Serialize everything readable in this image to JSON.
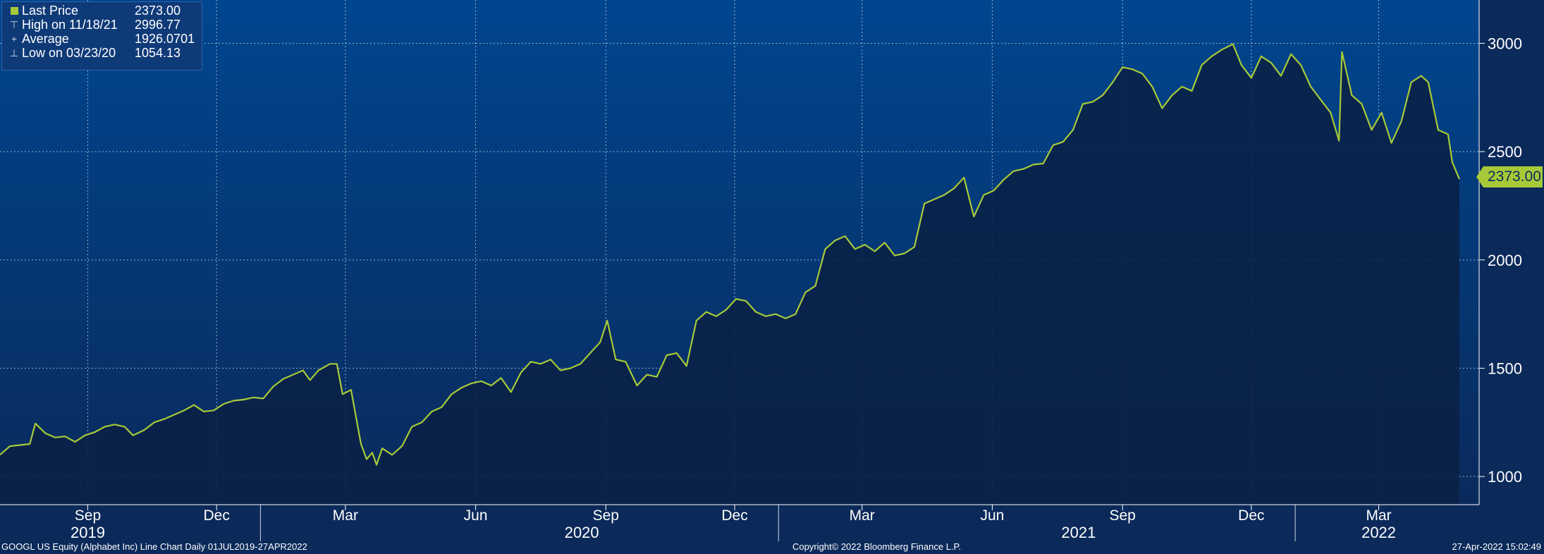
{
  "legend": {
    "items": [
      {
        "label": "Last Price",
        "value": "2373.00",
        "icon": "square-icon"
      },
      {
        "label": "High on 11/18/21",
        "value": "2996.77",
        "icon": "high-marker-icon"
      },
      {
        "label": "Average",
        "value": "1926.0701",
        "icon": "average-marker-icon"
      },
      {
        "label": "Low on 03/23/20",
        "value": "1054.13",
        "icon": "low-marker-icon"
      }
    ]
  },
  "last_price_tag": "2373.00",
  "footer": {
    "left": "GOOGL US Equity (Alphabet Inc) Line Chart  Daily 01JUL2019-27APR2022",
    "center": "Copyright© 2022 Bloomberg Finance L.P.",
    "right": "27-Apr-2022 15:02:49"
  },
  "colors": {
    "background_top": "#00468f",
    "background_bottom": "#0a2a5c",
    "fill": "#0a2146",
    "line": "#a7c939",
    "grid": "#c9d3e3",
    "text": "#ffffff"
  },
  "chart_data": {
    "type": "area",
    "title": "",
    "xlabel": "",
    "ylabel": "",
    "x_range": [
      "2019-07-01",
      "2022-04-27"
    ],
    "ylim": [
      870,
      3200
    ],
    "y_ticks": [
      1000,
      1500,
      2000,
      2500,
      3000
    ],
    "y_axis_position": "right",
    "grid": true,
    "legend_position": "top-left",
    "month_ticks": [
      {
        "date": "2019-09-01",
        "label": "Sep"
      },
      {
        "date": "2019-12-01",
        "label": "Dec"
      },
      {
        "date": "2020-03-01",
        "label": "Mar"
      },
      {
        "date": "2020-06-01",
        "label": "Jun"
      },
      {
        "date": "2020-09-01",
        "label": "Sep"
      },
      {
        "date": "2020-12-01",
        "label": "Dec"
      },
      {
        "date": "2021-03-01",
        "label": "Mar"
      },
      {
        "date": "2021-06-01",
        "label": "Jun"
      },
      {
        "date": "2021-09-01",
        "label": "Sep"
      },
      {
        "date": "2021-12-01",
        "label": "Dec"
      },
      {
        "date": "2022-03-01",
        "label": "Mar"
      }
    ],
    "year_labels": [
      {
        "date": "2019-09-01",
        "label": "2019"
      },
      {
        "date": "2020-08-15",
        "label": "2020"
      },
      {
        "date": "2021-08-01",
        "label": "2021"
      },
      {
        "date": "2022-03-01",
        "label": "2022"
      }
    ],
    "year_boundaries": [
      "2020-01-01",
      "2021-01-01",
      "2022-01-01"
    ],
    "series": [
      {
        "name": "Last Price",
        "points": [
          [
            "2019-07-01",
            1100
          ],
          [
            "2019-07-08",
            1140
          ],
          [
            "2019-07-15",
            1145
          ],
          [
            "2019-07-22",
            1150
          ],
          [
            "2019-07-26",
            1245
          ],
          [
            "2019-08-02",
            1200
          ],
          [
            "2019-08-09",
            1180
          ],
          [
            "2019-08-16",
            1185
          ],
          [
            "2019-08-23",
            1160
          ],
          [
            "2019-08-30",
            1190
          ],
          [
            "2019-09-06",
            1205
          ],
          [
            "2019-09-13",
            1230
          ],
          [
            "2019-09-20",
            1240
          ],
          [
            "2019-09-27",
            1230
          ],
          [
            "2019-10-03",
            1190
          ],
          [
            "2019-10-11",
            1215
          ],
          [
            "2019-10-18",
            1250
          ],
          [
            "2019-10-25",
            1265
          ],
          [
            "2019-11-01",
            1285
          ],
          [
            "2019-11-08",
            1305
          ],
          [
            "2019-11-15",
            1330
          ],
          [
            "2019-11-22",
            1300
          ],
          [
            "2019-11-29",
            1305
          ],
          [
            "2019-12-06",
            1335
          ],
          [
            "2019-12-13",
            1350
          ],
          [
            "2019-12-20",
            1355
          ],
          [
            "2019-12-27",
            1365
          ],
          [
            "2020-01-03",
            1360
          ],
          [
            "2020-01-10",
            1415
          ],
          [
            "2020-01-17",
            1450
          ],
          [
            "2020-01-24",
            1470
          ],
          [
            "2020-01-31",
            1490
          ],
          [
            "2020-02-05",
            1445
          ],
          [
            "2020-02-11",
            1490
          ],
          [
            "2020-02-19",
            1520
          ],
          [
            "2020-02-24",
            1520
          ],
          [
            "2020-02-28",
            1380
          ],
          [
            "2020-03-05",
            1400
          ],
          [
            "2020-03-12",
            1150
          ],
          [
            "2020-03-16",
            1080
          ],
          [
            "2020-03-20",
            1110
          ],
          [
            "2020-03-23",
            1054
          ],
          [
            "2020-03-27",
            1130
          ],
          [
            "2020-04-03",
            1100
          ],
          [
            "2020-04-10",
            1140
          ],
          [
            "2020-04-17",
            1230
          ],
          [
            "2020-04-24",
            1250
          ],
          [
            "2020-05-01",
            1300
          ],
          [
            "2020-05-08",
            1320
          ],
          [
            "2020-05-15",
            1380
          ],
          [
            "2020-05-22",
            1410
          ],
          [
            "2020-05-29",
            1430
          ],
          [
            "2020-06-05",
            1440
          ],
          [
            "2020-06-12",
            1420
          ],
          [
            "2020-06-19",
            1455
          ],
          [
            "2020-06-26",
            1390
          ],
          [
            "2020-07-03",
            1480
          ],
          [
            "2020-07-10",
            1530
          ],
          [
            "2020-07-17",
            1520
          ],
          [
            "2020-07-24",
            1540
          ],
          [
            "2020-07-31",
            1490
          ],
          [
            "2020-08-07",
            1500
          ],
          [
            "2020-08-14",
            1520
          ],
          [
            "2020-08-21",
            1570
          ],
          [
            "2020-08-28",
            1620
          ],
          [
            "2020-09-02",
            1720
          ],
          [
            "2020-09-08",
            1540
          ],
          [
            "2020-09-15",
            1530
          ],
          [
            "2020-09-23",
            1420
          ],
          [
            "2020-09-30",
            1470
          ],
          [
            "2020-10-07",
            1460
          ],
          [
            "2020-10-14",
            1560
          ],
          [
            "2020-10-21",
            1570
          ],
          [
            "2020-10-28",
            1510
          ],
          [
            "2020-11-04",
            1720
          ],
          [
            "2020-11-11",
            1760
          ],
          [
            "2020-11-18",
            1740
          ],
          [
            "2020-11-25",
            1770
          ],
          [
            "2020-12-02",
            1820
          ],
          [
            "2020-12-09",
            1810
          ],
          [
            "2020-12-16",
            1760
          ],
          [
            "2020-12-23",
            1740
          ],
          [
            "2020-12-30",
            1750
          ],
          [
            "2021-01-06",
            1730
          ],
          [
            "2021-01-13",
            1750
          ],
          [
            "2021-01-20",
            1850
          ],
          [
            "2021-01-27",
            1880
          ],
          [
            "2021-02-03",
            2050
          ],
          [
            "2021-02-10",
            2090
          ],
          [
            "2021-02-17",
            2110
          ],
          [
            "2021-02-24",
            2050
          ],
          [
            "2021-03-03",
            2070
          ],
          [
            "2021-03-10",
            2040
          ],
          [
            "2021-03-17",
            2080
          ],
          [
            "2021-03-24",
            2020
          ],
          [
            "2021-03-31",
            2030
          ],
          [
            "2021-04-07",
            2060
          ],
          [
            "2021-04-14",
            2260
          ],
          [
            "2021-04-21",
            2280
          ],
          [
            "2021-04-28",
            2300
          ],
          [
            "2021-05-05",
            2330
          ],
          [
            "2021-05-12",
            2380
          ],
          [
            "2021-05-19",
            2200
          ],
          [
            "2021-05-26",
            2300
          ],
          [
            "2021-06-02",
            2320
          ],
          [
            "2021-06-09",
            2370
          ],
          [
            "2021-06-16",
            2410
          ],
          [
            "2021-06-23",
            2420
          ],
          [
            "2021-06-30",
            2440
          ],
          [
            "2021-07-07",
            2445
          ],
          [
            "2021-07-14",
            2530
          ],
          [
            "2021-07-21",
            2545
          ],
          [
            "2021-07-28",
            2600
          ],
          [
            "2021-08-04",
            2720
          ],
          [
            "2021-08-11",
            2730
          ],
          [
            "2021-08-18",
            2760
          ],
          [
            "2021-08-25",
            2820
          ],
          [
            "2021-09-01",
            2890
          ],
          [
            "2021-09-08",
            2880
          ],
          [
            "2021-09-15",
            2860
          ],
          [
            "2021-09-22",
            2800
          ],
          [
            "2021-09-29",
            2700
          ],
          [
            "2021-10-06",
            2760
          ],
          [
            "2021-10-13",
            2800
          ],
          [
            "2021-10-20",
            2780
          ],
          [
            "2021-10-27",
            2900
          ],
          [
            "2021-11-03",
            2940
          ],
          [
            "2021-11-10",
            2970
          ],
          [
            "2021-11-18",
            2996.77
          ],
          [
            "2021-11-24",
            2900
          ],
          [
            "2021-12-01",
            2840
          ],
          [
            "2021-12-08",
            2940
          ],
          [
            "2021-12-15",
            2910
          ],
          [
            "2021-12-22",
            2850
          ],
          [
            "2021-12-29",
            2950
          ],
          [
            "2022-01-05",
            2900
          ],
          [
            "2022-01-12",
            2800
          ],
          [
            "2022-01-19",
            2740
          ],
          [
            "2022-01-26",
            2680
          ],
          [
            "2022-02-01",
            2550
          ],
          [
            "2022-02-03",
            2960
          ],
          [
            "2022-02-10",
            2760
          ],
          [
            "2022-02-17",
            2720
          ],
          [
            "2022-02-24",
            2600
          ],
          [
            "2022-03-03",
            2680
          ],
          [
            "2022-03-10",
            2540
          ],
          [
            "2022-03-17",
            2640
          ],
          [
            "2022-03-24",
            2820
          ],
          [
            "2022-03-31",
            2850
          ],
          [
            "2022-04-05",
            2820
          ],
          [
            "2022-04-12",
            2600
          ],
          [
            "2022-04-19",
            2580
          ],
          [
            "2022-04-22",
            2450
          ],
          [
            "2022-04-27",
            2373
          ]
        ]
      }
    ]
  }
}
